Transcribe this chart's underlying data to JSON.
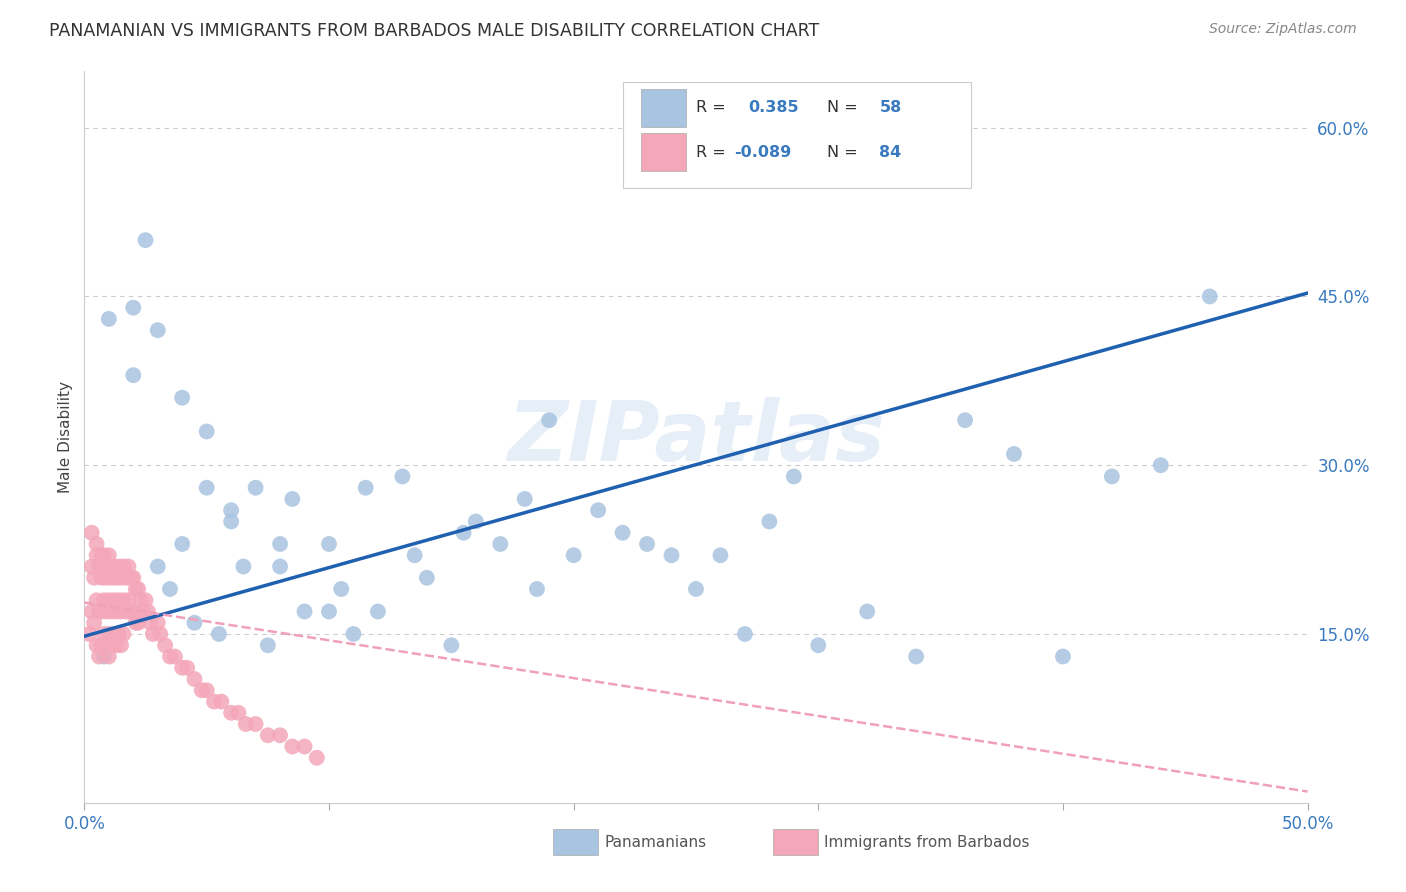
{
  "title": "PANAMANIAN VS IMMIGRANTS FROM BARBADOS MALE DISABILITY CORRELATION CHART",
  "source": "Source: ZipAtlas.com",
  "ylabel": "Male Disability",
  "xlim": [
    0.0,
    0.5
  ],
  "ylim": [
    0.0,
    0.65
  ],
  "xtick_positions": [
    0.0,
    0.1,
    0.2,
    0.3,
    0.4,
    0.5
  ],
  "xtick_labels": [
    "0.0%",
    "",
    "",
    "",
    "",
    "50.0%"
  ],
  "ytick_vals_right": [
    0.15,
    0.3,
    0.45,
    0.6
  ],
  "ytick_labels_right": [
    "15.0%",
    "30.0%",
    "45.0%",
    "60.0%"
  ],
  "grid_color": "#cccccc",
  "background_color": "#ffffff",
  "panama_color": "#a8c4e0",
  "barbados_color": "#f4a7b9",
  "panama_line_color": "#2060b0",
  "barbados_line_color": "#f0a0b8",
  "R_panama": 0.385,
  "N_panama": 58,
  "R_barbados": -0.089,
  "N_barbados": 84,
  "legend_labels": [
    "Panamanians",
    "Immigrants from Barbados"
  ],
  "watermark": "ZIPatlas",
  "panama_scatter_x": [
    0.008,
    0.02,
    0.025,
    0.03,
    0.035,
    0.04,
    0.045,
    0.05,
    0.055,
    0.06,
    0.065,
    0.07,
    0.075,
    0.08,
    0.085,
    0.09,
    0.1,
    0.105,
    0.11,
    0.115,
    0.12,
    0.13,
    0.135,
    0.14,
    0.15,
    0.155,
    0.16,
    0.17,
    0.18,
    0.185,
    0.19,
    0.2,
    0.21,
    0.22,
    0.23,
    0.24,
    0.25,
    0.26,
    0.27,
    0.28,
    0.29,
    0.3,
    0.32,
    0.34,
    0.36,
    0.38,
    0.4,
    0.42,
    0.44,
    0.46,
    0.01,
    0.02,
    0.03,
    0.04,
    0.05,
    0.06,
    0.08,
    0.1
  ],
  "panama_scatter_y": [
    0.13,
    0.44,
    0.5,
    0.21,
    0.19,
    0.23,
    0.16,
    0.28,
    0.15,
    0.26,
    0.21,
    0.28,
    0.14,
    0.21,
    0.27,
    0.17,
    0.23,
    0.19,
    0.15,
    0.28,
    0.17,
    0.29,
    0.22,
    0.2,
    0.14,
    0.24,
    0.25,
    0.23,
    0.27,
    0.19,
    0.34,
    0.22,
    0.26,
    0.24,
    0.23,
    0.22,
    0.19,
    0.22,
    0.15,
    0.25,
    0.29,
    0.14,
    0.17,
    0.13,
    0.34,
    0.31,
    0.13,
    0.29,
    0.3,
    0.45,
    0.43,
    0.38,
    0.42,
    0.36,
    0.33,
    0.25,
    0.23,
    0.17
  ],
  "barbados_scatter_x": [
    0.002,
    0.003,
    0.003,
    0.004,
    0.004,
    0.005,
    0.005,
    0.005,
    0.006,
    0.006,
    0.006,
    0.007,
    0.007,
    0.007,
    0.008,
    0.008,
    0.008,
    0.009,
    0.009,
    0.009,
    0.01,
    0.01,
    0.01,
    0.01,
    0.011,
    0.011,
    0.011,
    0.012,
    0.012,
    0.012,
    0.013,
    0.013,
    0.013,
    0.014,
    0.014,
    0.014,
    0.015,
    0.015,
    0.015,
    0.016,
    0.016,
    0.016,
    0.017,
    0.017,
    0.018,
    0.018,
    0.019,
    0.019,
    0.02,
    0.02,
    0.021,
    0.021,
    0.022,
    0.022,
    0.023,
    0.024,
    0.025,
    0.026,
    0.027,
    0.028,
    0.03,
    0.031,
    0.033,
    0.035,
    0.037,
    0.04,
    0.042,
    0.045,
    0.048,
    0.05,
    0.053,
    0.056,
    0.06,
    0.063,
    0.066,
    0.07,
    0.075,
    0.08,
    0.085,
    0.09,
    0.095,
    0.003,
    0.005,
    0.007,
    0.009
  ],
  "barbados_scatter_y": [
    0.15,
    0.21,
    0.17,
    0.2,
    0.16,
    0.22,
    0.18,
    0.14,
    0.21,
    0.17,
    0.13,
    0.2,
    0.17,
    0.14,
    0.22,
    0.18,
    0.15,
    0.21,
    0.17,
    0.14,
    0.22,
    0.18,
    0.15,
    0.13,
    0.2,
    0.17,
    0.14,
    0.21,
    0.18,
    0.15,
    0.2,
    0.17,
    0.14,
    0.21,
    0.18,
    0.15,
    0.2,
    0.17,
    0.14,
    0.21,
    0.18,
    0.15,
    0.2,
    0.17,
    0.21,
    0.18,
    0.2,
    0.17,
    0.2,
    0.17,
    0.19,
    0.16,
    0.19,
    0.16,
    0.18,
    0.17,
    0.18,
    0.17,
    0.16,
    0.15,
    0.16,
    0.15,
    0.14,
    0.13,
    0.13,
    0.12,
    0.12,
    0.11,
    0.1,
    0.1,
    0.09,
    0.09,
    0.08,
    0.08,
    0.07,
    0.07,
    0.06,
    0.06,
    0.05,
    0.05,
    0.04,
    0.24,
    0.23,
    0.22,
    0.2
  ],
  "panama_line_x": [
    0.0,
    0.5
  ],
  "panama_line_y": [
    0.148,
    0.453
  ],
  "barbados_line_x": [
    0.0,
    0.5
  ],
  "barbados_line_y": [
    0.178,
    0.01
  ]
}
